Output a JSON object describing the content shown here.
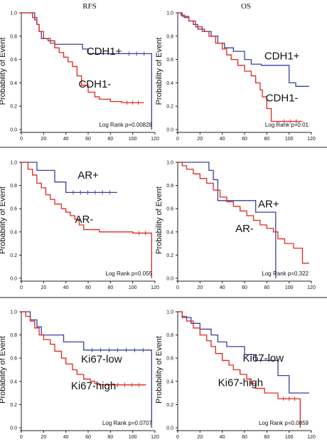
{
  "column_titles": [
    "RFS",
    "OS"
  ],
  "colors": {
    "positive": "#3a3f9e",
    "negative": "#e0281f"
  },
  "chart_data": [
    {
      "type": "line",
      "panel": "RFS / CDH1",
      "ylabel": "Probability of Event",
      "xlim": [
        0,
        120
      ],
      "ylim": [
        0,
        1
      ],
      "xticks": [
        "0",
        "20",
        "40",
        "60",
        "80",
        "100",
        "120"
      ],
      "yticks": [
        "0.0",
        "0.2",
        "0.4",
        "0.6",
        "0.8",
        "1.0"
      ],
      "annotation": "Log Rank p=0.00828",
      "series": [
        {
          "name": "CDH1+",
          "color": "#3a3f9e",
          "x": [
            0,
            8,
            12,
            14,
            16,
            18,
            24,
            30,
            40,
            55,
            60,
            90,
            117,
            117
          ],
          "y": [
            1,
            1,
            0.94,
            0.9,
            0.84,
            0.78,
            0.76,
            0.73,
            0.73,
            0.69,
            0.65,
            0.65,
            0.65,
            0.0
          ]
        },
        {
          "name": "CDH1-",
          "color": "#e0281f",
          "x": [
            0,
            8,
            10,
            14,
            16,
            20,
            26,
            30,
            34,
            38,
            42,
            46,
            50,
            54,
            60,
            66,
            70,
            76,
            80,
            86,
            90,
            110
          ],
          "y": [
            1,
            1,
            0.96,
            0.9,
            0.84,
            0.78,
            0.74,
            0.7,
            0.66,
            0.62,
            0.58,
            0.54,
            0.46,
            0.38,
            0.32,
            0.28,
            0.26,
            0.26,
            0.24,
            0.24,
            0.23,
            0.23
          ]
        }
      ]
    },
    {
      "type": "line",
      "panel": "OS / CDH1",
      "ylabel": "Probability of Event",
      "xlim": [
        0,
        120
      ],
      "ylim": [
        0,
        1
      ],
      "xticks": [
        "0",
        "20",
        "40",
        "60",
        "80",
        "100",
        "120"
      ],
      "yticks": [
        "0.0",
        "0.2",
        "0.4",
        "0.6",
        "0.8",
        "1.0"
      ],
      "annotation": "Log Rank p=0.01",
      "series": [
        {
          "name": "CDH1+",
          "color": "#3a3f9e",
          "x": [
            0,
            3,
            6,
            10,
            14,
            18,
            24,
            30,
            36,
            42,
            50,
            60,
            66,
            75,
            80,
            100,
            106,
            112,
            118
          ],
          "y": [
            1,
            0.98,
            0.96,
            0.93,
            0.9,
            0.86,
            0.84,
            0.8,
            0.74,
            0.7,
            0.67,
            0.6,
            0.56,
            0.55,
            0.55,
            0.4,
            0.37,
            0.37,
            0.37
          ]
        },
        {
          "name": "CDH1-",
          "color": "#e0281f",
          "x": [
            0,
            4,
            10,
            16,
            22,
            28,
            34,
            40,
            44,
            48,
            54,
            60,
            66,
            70,
            74,
            76,
            80,
            84,
            90,
            112
          ],
          "y": [
            1,
            0.97,
            0.93,
            0.88,
            0.84,
            0.8,
            0.74,
            0.69,
            0.64,
            0.6,
            0.55,
            0.5,
            0.46,
            0.4,
            0.34,
            0.28,
            0.18,
            0.07,
            0.07,
            0.07
          ]
        }
      ]
    },
    {
      "type": "line",
      "panel": "RFS / AR",
      "ylabel": "Probability of Event",
      "xlim": [
        0,
        120
      ],
      "ylim": [
        0,
        1
      ],
      "xticks": [
        "0",
        "20",
        "40",
        "60",
        "80",
        "100",
        "120"
      ],
      "yticks": [
        "0.0",
        "0.2",
        "0.4",
        "0.6",
        "0.8",
        "1.0"
      ],
      "annotation": "Log Rank p=0.055",
      "series": [
        {
          "name": "AR+",
          "color": "#3a3f9e",
          "x": [
            0,
            14,
            20,
            30,
            40,
            86
          ],
          "y": [
            1,
            0.93,
            0.93,
            0.83,
            0.74,
            0.74
          ]
        },
        {
          "name": "AR-",
          "color": "#e0281f",
          "x": [
            0,
            6,
            10,
            14,
            18,
            22,
            26,
            30,
            36,
            40,
            44,
            48,
            52,
            56,
            70,
            100,
            117,
            117
          ],
          "y": [
            1,
            0.94,
            0.89,
            0.82,
            0.78,
            0.72,
            0.68,
            0.64,
            0.6,
            0.57,
            0.54,
            0.51,
            0.46,
            0.42,
            0.4,
            0.39,
            0.39,
            0.0
          ]
        }
      ]
    },
    {
      "type": "line",
      "panel": "OS / AR",
      "ylabel": "Probability of Event",
      "xlim": [
        0,
        120
      ],
      "ylim": [
        0,
        1
      ],
      "xticks": [
        "0",
        "20",
        "40",
        "60",
        "80",
        "100",
        "120"
      ],
      "yticks": [
        "0.0",
        "0.2",
        "0.4",
        "0.6",
        "0.8",
        "1.0"
      ],
      "annotation": "Log Rank p=0.322",
      "series": [
        {
          "name": "AR+",
          "color": "#3a3f9e",
          "x": [
            0,
            28,
            32,
            36,
            64,
            70,
            80,
            88,
            88
          ],
          "y": [
            1,
            0.93,
            0.85,
            0.67,
            0.67,
            0.57,
            0.57,
            0.57,
            0.0
          ]
        },
        {
          "name": "AR-",
          "color": "#e0281f",
          "x": [
            0,
            4,
            8,
            14,
            20,
            26,
            32,
            38,
            44,
            50,
            56,
            62,
            68,
            74,
            80,
            86,
            90,
            96,
            104,
            112,
            118
          ],
          "y": [
            1,
            0.97,
            0.94,
            0.9,
            0.86,
            0.82,
            0.76,
            0.7,
            0.66,
            0.62,
            0.58,
            0.54,
            0.5,
            0.46,
            0.43,
            0.4,
            0.34,
            0.3,
            0.26,
            0.13,
            0.13
          ]
        }
      ]
    },
    {
      "type": "line",
      "panel": "RFS / Ki67",
      "ylabel": "Probability of Event",
      "xlim": [
        0,
        120
      ],
      "ylim": [
        0,
        1
      ],
      "xticks": [
        "0",
        "20",
        "40",
        "60",
        "80",
        "100",
        "120"
      ],
      "yticks": [
        "0.0",
        "0.2",
        "0.4",
        "0.6",
        "0.8",
        "1.0"
      ],
      "annotation": "Log Rank p=0.0707",
      "series": [
        {
          "name": "Ki67-low",
          "color": "#3a3f9e",
          "x": [
            0,
            8,
            14,
            18,
            30,
            38,
            56,
            117,
            117
          ],
          "y": [
            1,
            0.93,
            0.87,
            0.8,
            0.8,
            0.74,
            0.67,
            0.67,
            0.0
          ]
        },
        {
          "name": "Ki67-high",
          "color": "#e0281f",
          "x": [
            0,
            4,
            8,
            12,
            16,
            20,
            26,
            30,
            36,
            40,
            46,
            50,
            56,
            62,
            66,
            70,
            80,
            112
          ],
          "y": [
            1,
            0.96,
            0.92,
            0.86,
            0.8,
            0.76,
            0.72,
            0.66,
            0.6,
            0.55,
            0.5,
            0.46,
            0.42,
            0.4,
            0.38,
            0.37,
            0.37,
            0.37
          ]
        }
      ]
    },
    {
      "type": "line",
      "panel": "OS / Ki67",
      "ylabel": "Probability of Event",
      "xlim": [
        0,
        120
      ],
      "ylim": [
        0,
        1
      ],
      "xticks": [
        "0",
        "20",
        "40",
        "60",
        "80",
        "100",
        "120"
      ],
      "yticks": [
        "0.0",
        "0.2",
        "0.4",
        "0.6",
        "0.8",
        "1.0"
      ],
      "annotation": "Log Rank p=0.0859",
      "series": [
        {
          "name": "Ki67-low",
          "color": "#3a3f9e",
          "x": [
            0,
            4,
            12,
            20,
            30,
            36,
            44,
            60,
            70,
            84,
            90,
            100,
            112,
            118
          ],
          "y": [
            1,
            0.95,
            0.9,
            0.85,
            0.8,
            0.74,
            0.7,
            0.63,
            0.58,
            0.58,
            0.45,
            0.3,
            0.3,
            0.3
          ]
        },
        {
          "name": "Ki67-high",
          "color": "#e0281f",
          "x": [
            0,
            4,
            8,
            14,
            20,
            26,
            30,
            34,
            40,
            46,
            50,
            56,
            62,
            66,
            70,
            78,
            90,
            110,
            110
          ],
          "y": [
            1,
            0.96,
            0.92,
            0.86,
            0.8,
            0.75,
            0.7,
            0.64,
            0.58,
            0.54,
            0.5,
            0.46,
            0.42,
            0.38,
            0.34,
            0.3,
            0.25,
            0.25,
            0.0
          ]
        }
      ]
    }
  ]
}
